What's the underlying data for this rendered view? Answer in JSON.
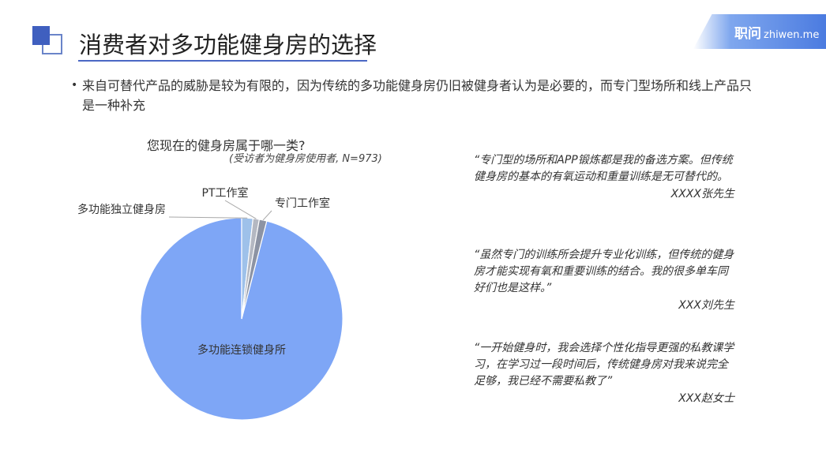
{
  "header": {
    "title": "消费者对多功能健身房的选择",
    "brand_cn": "职问",
    "brand_en": "zhiwen.me",
    "accent_color": "#3f5fbf"
  },
  "bullet": {
    "text": "来自可替代产品的威胁是较为有限的，因为传统的多功能健身房仍旧被健身者认为是必要的，而专门型场所和线上产品只是一种补充"
  },
  "chart_data": {
    "type": "pie",
    "title": "您现在的健身房属于哪一类?",
    "subtitle": "(受访者为健身房使用者, N=973)",
    "slices": [
      {
        "label": "多功能连锁健身所",
        "value": 96.0,
        "color": "#7ea6f6"
      },
      {
        "label": "多功能独立健身房",
        "value": 1.8,
        "color": "#9ec1ea"
      },
      {
        "label": "PT工作室",
        "value": 1.0,
        "color": "#b4b8c2"
      },
      {
        "label": "专门工作室",
        "value": 1.2,
        "color": "#8c93a3"
      }
    ]
  },
  "quotes": [
    {
      "text": "“专门型的场所和APP锻炼都是我的备选方案。但传统健身房的基本的有氧运动和重量训练是无可替代的。",
      "author": "XXXX张先生"
    },
    {
      "text": "“虽然专门的训练所会提升专业化训练，但传统的健身房才能实现有氧和重要训练的结合。我的很多单车同好们也是这样。”",
      "author": "XXX刘先生"
    },
    {
      "text": "“一开始健身时，我会选择个性化指导更强的私教课学习，在学习过一段时间后，传统健身房对我来说完全足够，我已经不需要私教了”",
      "author": "XXX赵女士"
    }
  ]
}
